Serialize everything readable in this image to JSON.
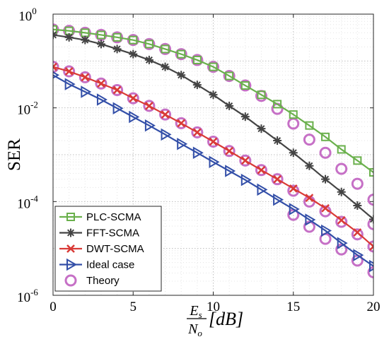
{
  "chart_data": {
    "type": "line",
    "ylabel": "SER",
    "xlabel": {
      "numerator": "E",
      "numerator_sub": "s",
      "denominator": "N",
      "denominator_sub": "o",
      "unit": "[dB]"
    },
    "xlim": [
      0,
      20
    ],
    "ylim": [
      1e-06,
      1
    ],
    "yscale": "log",
    "grid": true,
    "legend_position": "bottom-left",
    "x_ticks": [
      "0",
      "5",
      "10",
      "15",
      "20"
    ],
    "y_ticks": [
      {
        "base": "10",
        "exp": "-6"
      },
      {
        "base": "10",
        "exp": "-4"
      },
      {
        "base": "10",
        "exp": "-2"
      },
      {
        "base": "10",
        "exp": "0"
      }
    ],
    "x": [
      0,
      1,
      2,
      3,
      4,
      5,
      6,
      7,
      8,
      9,
      10,
      11,
      12,
      13,
      14,
      15,
      16,
      17,
      18,
      19,
      20
    ],
    "series": [
      {
        "name": "PLC-SCMA",
        "color": "#6ab04c",
        "marker": "square",
        "values": [
          0.47,
          0.44,
          0.4,
          0.36,
          0.32,
          0.28,
          0.23,
          0.18,
          0.14,
          0.105,
          0.075,
          0.048,
          0.03,
          0.019,
          0.012,
          0.0072,
          0.0042,
          0.0024,
          0.0013,
          0.00075,
          0.00042
        ]
      },
      {
        "name": "FFT-SCMA",
        "color": "#444444",
        "marker": "asterisk",
        "values": [
          0.36,
          0.32,
          0.28,
          0.23,
          0.18,
          0.14,
          0.105,
          0.075,
          0.05,
          0.031,
          0.019,
          0.011,
          0.0065,
          0.0036,
          0.002,
          0.0011,
          0.00058,
          0.0003,
          0.00016,
          8.2e-05,
          4.2e-05
        ]
      },
      {
        "name": "DWT-SCMA",
        "color": "#d93a36",
        "marker": "x",
        "values": [
          0.075,
          0.06,
          0.045,
          0.033,
          0.024,
          0.016,
          0.011,
          0.0072,
          0.0047,
          0.003,
          0.0019,
          0.0012,
          0.00075,
          0.00047,
          0.0003,
          0.00019,
          0.00012,
          7.2e-05,
          4e-05,
          2.2e-05,
          1.1e-05
        ]
      },
      {
        "name": "Ideal case",
        "color": "#334fa8",
        "marker": "triangle-right",
        "values": [
          0.05,
          0.032,
          0.022,
          0.015,
          0.0098,
          0.0064,
          0.0042,
          0.0027,
          0.0017,
          0.0011,
          0.0007,
          0.00045,
          0.00029,
          0.00018,
          0.00011,
          6.9e-05,
          4.1e-05,
          2.4e-05,
          1.3e-05,
          7.2e-06,
          4.2e-06
        ]
      },
      {
        "name": "Theory",
        "color": "#c060c0",
        "marker": "circle",
        "line": false,
        "groups": [
          {
            "x": [
              0,
              1,
              2,
              3,
              4,
              5,
              6,
              7,
              8,
              9,
              10,
              11,
              12,
              13,
              14,
              15,
              16,
              17,
              18,
              19,
              20
            ],
            "values": [
              0.47,
              0.44,
              0.4,
              0.36,
              0.32,
              0.28,
              0.23,
              0.18,
              0.14,
              0.105,
              0.075,
              0.048,
              0.03,
              0.018,
              0.0095,
              0.0046,
              0.0021,
              0.0011,
              0.0005,
              0.00024,
              0.00011
            ]
          },
          {
            "x": [
              0,
              1,
              2,
              3,
              4,
              5,
              6,
              7,
              8,
              9,
              10,
              11,
              12,
              13,
              14,
              15,
              16,
              17,
              18,
              19,
              20
            ],
            "values": [
              0.075,
              0.06,
              0.045,
              0.033,
              0.024,
              0.016,
              0.011,
              0.0072,
              0.0047,
              0.003,
              0.0019,
              0.0012,
              0.00075,
              0.00047,
              0.0003,
              0.00017,
              0.0001,
              6.2e-05,
              3.7e-05,
              2e-05,
              1.1e-05
            ]
          },
          {
            "x": [
              15,
              16,
              17,
              18,
              19,
              20
            ],
            "values": [
              5.2e-05,
              2.9e-05,
              1.6e-05,
              9.5e-06,
              5.5e-06,
              3.1e-06
            ]
          },
          {
            "x": [
              20
            ],
            "values": [
              3.3e-05
            ]
          }
        ]
      }
    ]
  }
}
